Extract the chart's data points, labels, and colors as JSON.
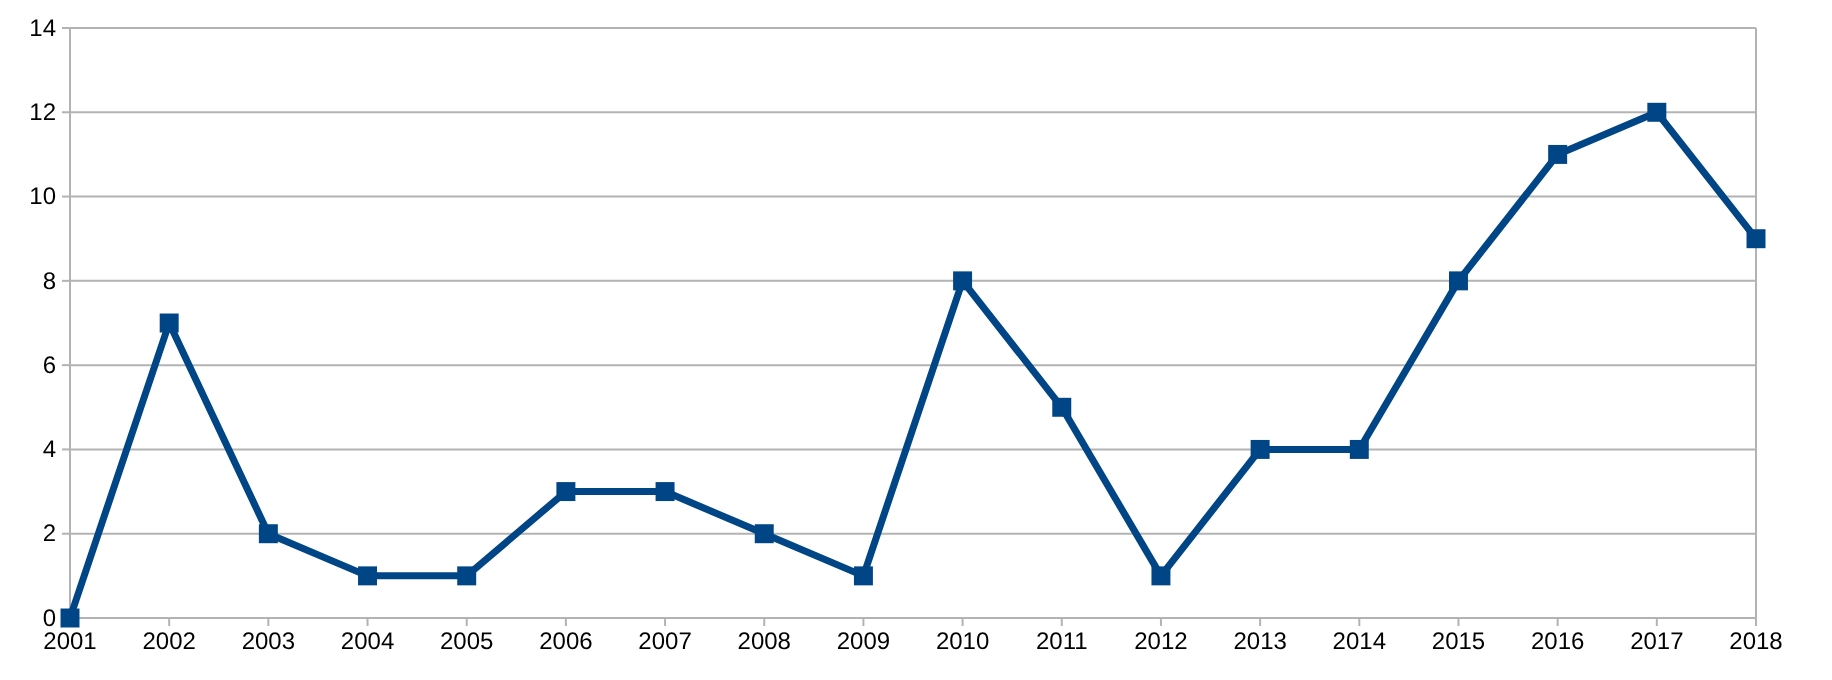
{
  "chart_data": {
    "type": "line",
    "categories": [
      "2001",
      "2002",
      "2003",
      "2004",
      "2005",
      "2006",
      "2007",
      "2008",
      "2009",
      "2010",
      "2011",
      "2012",
      "2013",
      "2014",
      "2015",
      "2016",
      "2017",
      "2018"
    ],
    "series": [
      {
        "color": "#004586",
        "values": [
          0,
          7,
          2,
          1,
          1,
          3,
          3,
          2,
          1,
          8,
          5,
          1,
          4,
          4,
          8,
          11,
          12,
          9
        ]
      }
    ],
    "ylim": [
      0,
      14
    ],
    "yticks": [
      0,
      2,
      4,
      6,
      8,
      10,
      12,
      14
    ],
    "grid": "y",
    "marker": "square",
    "line_style": "solid"
  }
}
